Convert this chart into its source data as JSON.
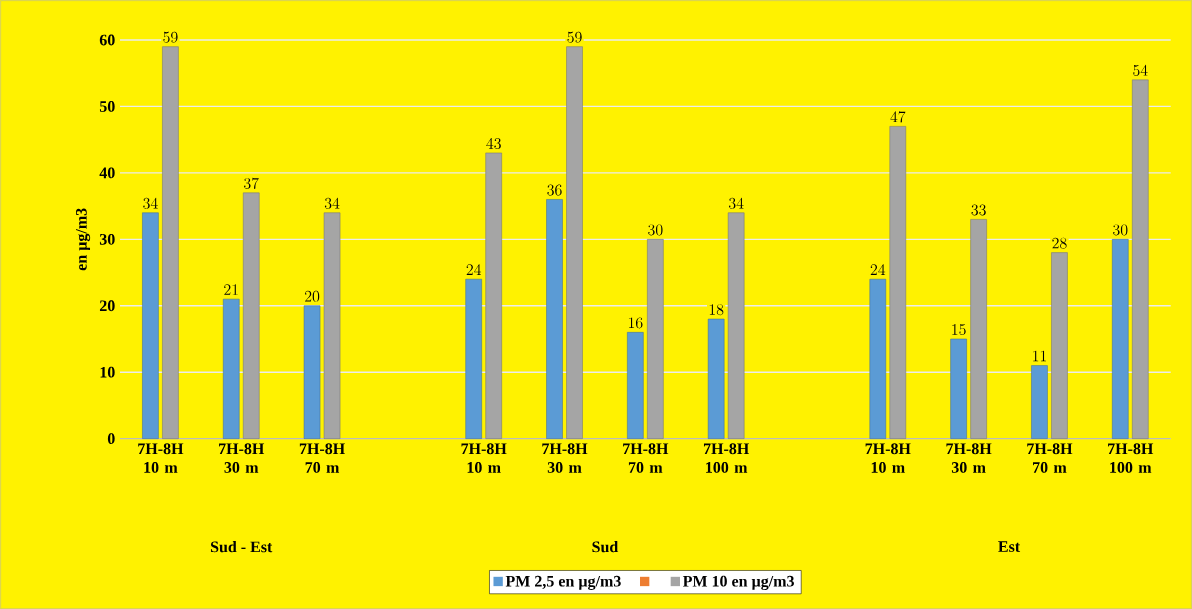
{
  "chart_data": {
    "type": "bar",
    "ylabel": "en µg/m3",
    "categories": [
      "7H-8H 10 m",
      "7H-8H 30 m",
      "7H-8H 70 m",
      null,
      "7H-8H 10 m",
      "7H-8H 30 m",
      "7H-8H 70 m",
      "7H-8H 100 m",
      null,
      "7H-8H 10 m",
      "7H-8H 30 m",
      "7H-8H 70 m",
      "7H-8H 100 m"
    ],
    "series": [
      {
        "name": "PM 2,5 en µg/m3",
        "color": "#5b9bd5",
        "values": [
          34,
          21,
          20,
          null,
          24,
          36,
          16,
          18,
          null,
          24,
          15,
          11,
          30
        ]
      },
      {
        "color": "#ed7d31",
        "values": [
          null,
          null,
          null,
          null,
          null,
          null,
          null,
          null,
          null,
          null,
          null,
          null,
          null
        ]
      },
      {
        "name": "PM 10 en µg/m3",
        "color": "#a5a5a5",
        "values": [
          59,
          37,
          34,
          null,
          43,
          59,
          30,
          34,
          null,
          47,
          33,
          28,
          54
        ]
      }
    ],
    "annotations": [
      "Sud - Est",
      "Sud",
      "Est"
    ],
    "ylim": [
      0,
      60
    ],
    "yticks": [
      0,
      10,
      20,
      30,
      40,
      50,
      60
    ],
    "grid": "y",
    "legend": "bottom",
    "data_labels": true
  }
}
